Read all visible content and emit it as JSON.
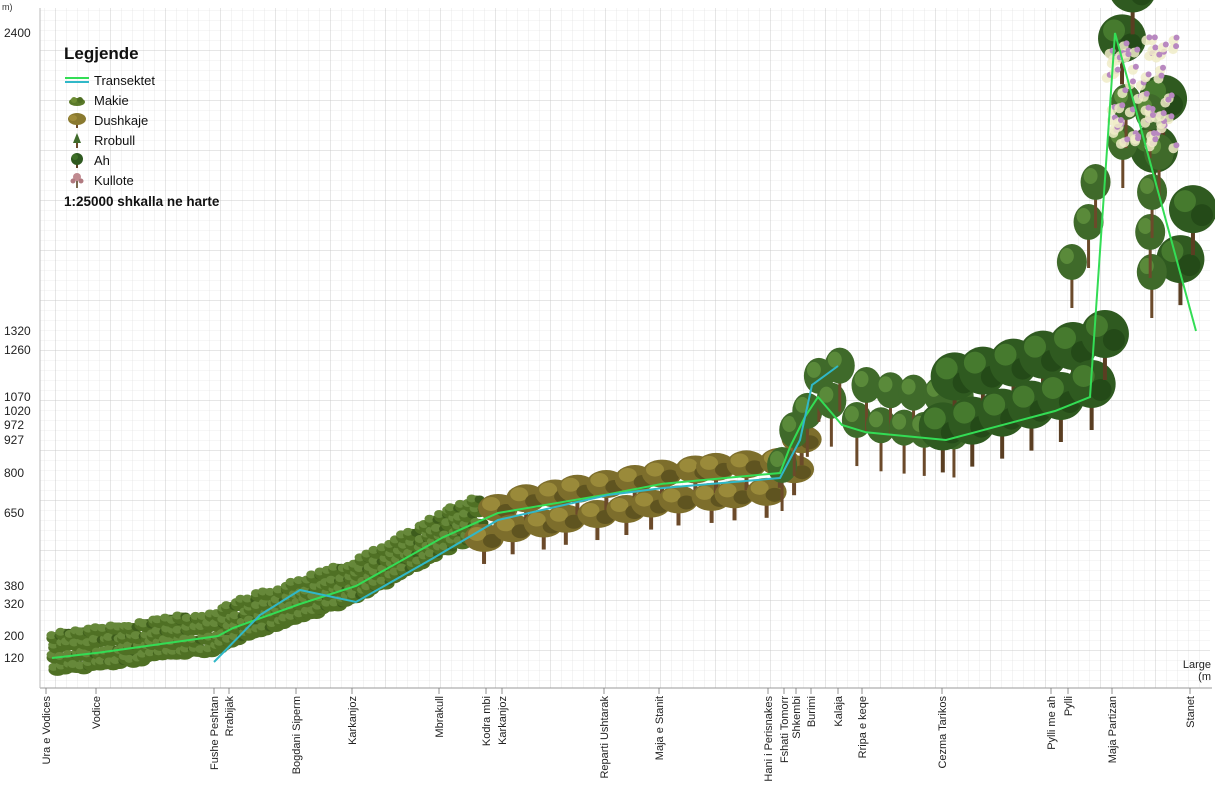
{
  "chart_data": {
    "type": "area",
    "y_unit_label": "m)",
    "x_unit_label_line1": "Large",
    "x_unit_label_line2": "(m",
    "y_ticks": [
      120,
      200,
      320,
      380,
      650,
      800,
      927,
      972,
      1020,
      1070,
      1260,
      1320,
      2400
    ],
    "locations": [
      {
        "name": "Ura e Vodices",
        "elevation": 120
      },
      {
        "name": "Vodice",
        "elevation": 140
      },
      {
        "name": "Fushe Peshtan",
        "elevation": 200
      },
      {
        "name": "Rrabijak",
        "elevation": 230
      },
      {
        "name": "Bogdani Siperm",
        "elevation": 320
      },
      {
        "name": "Karkanjoz",
        "elevation": 380
      },
      {
        "name": "Mbrakull",
        "elevation": 560
      },
      {
        "name": "Kodra mbi Karkanjoz",
        "elevation": 650
      },
      {
        "name": "Reparti Ushtarak",
        "elevation": 720
      },
      {
        "name": "Maja e Stanit",
        "elevation": 760
      },
      {
        "name": "Hani i Perisnakes",
        "elevation": 800
      },
      {
        "name": "Fshati Tomorr",
        "elevation": 900
      },
      {
        "name": "Shkembi",
        "elevation": 1000
      },
      {
        "name": "Burimi",
        "elevation": 1070
      },
      {
        "name": "Kalaja",
        "elevation": 972
      },
      {
        "name": "Rripa e keqe",
        "elevation": 950
      },
      {
        "name": "Cezma Tarikos",
        "elevation": 927
      },
      {
        "name": "Pylli me ah",
        "elevation": 1020
      },
      {
        "name": "Pylli",
        "elevation": 1070
      },
      {
        "name": "Maja Partizan",
        "elevation": 2400
      },
      {
        "name": "Stanet",
        "elevation": 1320
      }
    ],
    "vegetation_zones": [
      {
        "type": "Makie",
        "from": "Ura e Vodices",
        "to": "Mbrakull"
      },
      {
        "type": "Dushkaje",
        "from": "Kodra mbi Karkanjoz",
        "to": "Hani i Perisnakes"
      },
      {
        "type": "Rrobull",
        "from": "Fshati Tomorr",
        "to": "Cezma Tarikos"
      },
      {
        "type": "Ah",
        "from": "Cezma Tarikos",
        "to": "Stanet"
      },
      {
        "type": "Kullote",
        "from": "Maja Partizan",
        "to": "Maja Partizan"
      }
    ],
    "grid": true,
    "legend_position": "top-left"
  },
  "legend": {
    "title": "Legjende",
    "items": [
      {
        "label": "Transektet",
        "icon": "transect-line-icon",
        "color": "#33cc55"
      },
      {
        "label": "Makie",
        "icon": "shrub-icon",
        "color": "#5a7a2a"
      },
      {
        "label": "Dushkaje",
        "icon": "oak-icon",
        "color": "#8a7a30"
      },
      {
        "label": "Rrobull",
        "icon": "pine-icon",
        "color": "#3f6a2a"
      },
      {
        "label": "Ah",
        "icon": "beech-icon",
        "color": "#2f5a20"
      },
      {
        "label": "Kullote",
        "icon": "pasture-flower-icon",
        "color": "#b07a80"
      }
    ],
    "scale_text": "1:25000 shkalla ne harte"
  },
  "colors": {
    "transect_main": "#33dd55",
    "transect_alt": "#30b8c8",
    "grid": "#d2d2d2",
    "grid_major": "#b8b8b8"
  }
}
